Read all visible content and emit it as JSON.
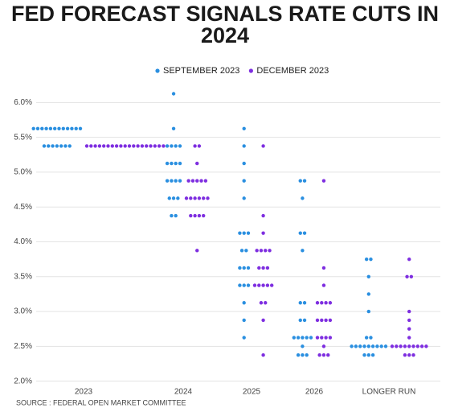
{
  "chart_data": {
    "type": "dot",
    "title": "FED FORECAST SIGNALS RATE CUTS IN 2024",
    "source": "SOURCE : FEDERAL OPEN MARKET COMMITTEE",
    "categories": [
      "2023",
      "2024",
      "2025",
      "2026",
      "LONGER RUN"
    ],
    "ylim": [
      1.95,
      6.2
    ],
    "yticks": [
      {
        "value": 2.0,
        "label": "2.0%"
      },
      {
        "value": 2.5,
        "label": "2.5%"
      },
      {
        "value": 3.0,
        "label": "3.0%"
      },
      {
        "value": 3.5,
        "label": "3.5%"
      },
      {
        "value": 4.0,
        "label": "4.0%"
      },
      {
        "value": 4.5,
        "label": "4.5%"
      },
      {
        "value": 5.0,
        "label": "5.0%"
      },
      {
        "value": 5.5,
        "label": "5.5%"
      },
      {
        "value": 6.0,
        "label": "6.0%"
      }
    ],
    "grid": true,
    "legend": "top",
    "series": [
      {
        "name": "SEPTEMBER 2023",
        "color": "#2a8fe0",
        "values": [
          [
            5.625,
            5.625,
            5.625,
            5.625,
            5.625,
            5.625,
            5.625,
            5.625,
            5.625,
            5.625,
            5.625,
            5.625,
            5.375,
            5.375,
            5.375,
            5.375,
            5.375,
            5.375,
            5.375
          ],
          [
            6.125,
            5.625,
            5.375,
            5.375,
            5.375,
            5.375,
            5.125,
            5.125,
            5.125,
            5.125,
            4.875,
            4.875,
            4.875,
            4.875,
            4.625,
            4.625,
            4.625,
            4.375,
            4.375
          ],
          [
            5.625,
            5.375,
            5.125,
            4.875,
            4.625,
            4.125,
            4.125,
            4.125,
            3.875,
            3.875,
            3.625,
            3.625,
            3.625,
            3.375,
            3.375,
            3.375,
            3.125,
            2.875,
            2.625
          ],
          [
            4.875,
            4.875,
            4.625,
            4.125,
            4.125,
            3.875,
            3.125,
            3.125,
            2.875,
            2.875,
            2.625,
            2.625,
            2.625,
            2.625,
            2.625,
            2.5,
            2.375,
            2.375,
            2.375
          ],
          [
            3.75,
            3.75,
            3.5,
            3.25,
            3.0,
            2.625,
            2.625,
            2.5,
            2.5,
            2.5,
            2.5,
            2.5,
            2.5,
            2.5,
            2.5,
            2.5,
            2.375,
            2.375,
            2.375
          ]
        ]
      },
      {
        "name": "DECEMBER 2023",
        "color": "#7e2ee0",
        "values": [
          [
            5.375,
            5.375,
            5.375,
            5.375,
            5.375,
            5.375,
            5.375,
            5.375,
            5.375,
            5.375,
            5.375,
            5.375,
            5.375,
            5.375,
            5.375,
            5.375,
            5.375,
            5.375,
            5.375
          ],
          [
            5.375,
            5.375,
            5.125,
            4.875,
            4.875,
            4.875,
            4.875,
            4.875,
            4.625,
            4.625,
            4.625,
            4.625,
            4.625,
            4.625,
            4.375,
            4.375,
            4.375,
            4.375,
            3.875
          ],
          [
            5.375,
            4.375,
            4.125,
            3.875,
            3.875,
            3.875,
            3.875,
            3.625,
            3.625,
            3.625,
            3.375,
            3.375,
            3.375,
            3.375,
            3.375,
            3.125,
            3.125,
            2.875,
            2.375
          ],
          [
            4.875,
            3.625,
            3.375,
            3.125,
            3.125,
            3.125,
            3.125,
            2.875,
            2.875,
            2.875,
            2.875,
            2.625,
            2.625,
            2.625,
            2.625,
            2.5,
            2.375,
            2.375,
            2.375
          ],
          [
            3.75,
            3.5,
            3.5,
            3.0,
            2.875,
            2.75,
            2.625,
            2.5,
            2.5,
            2.5,
            2.5,
            2.5,
            2.5,
            2.5,
            2.5,
            2.5,
            2.375,
            2.375,
            2.375
          ]
        ]
      }
    ]
  }
}
